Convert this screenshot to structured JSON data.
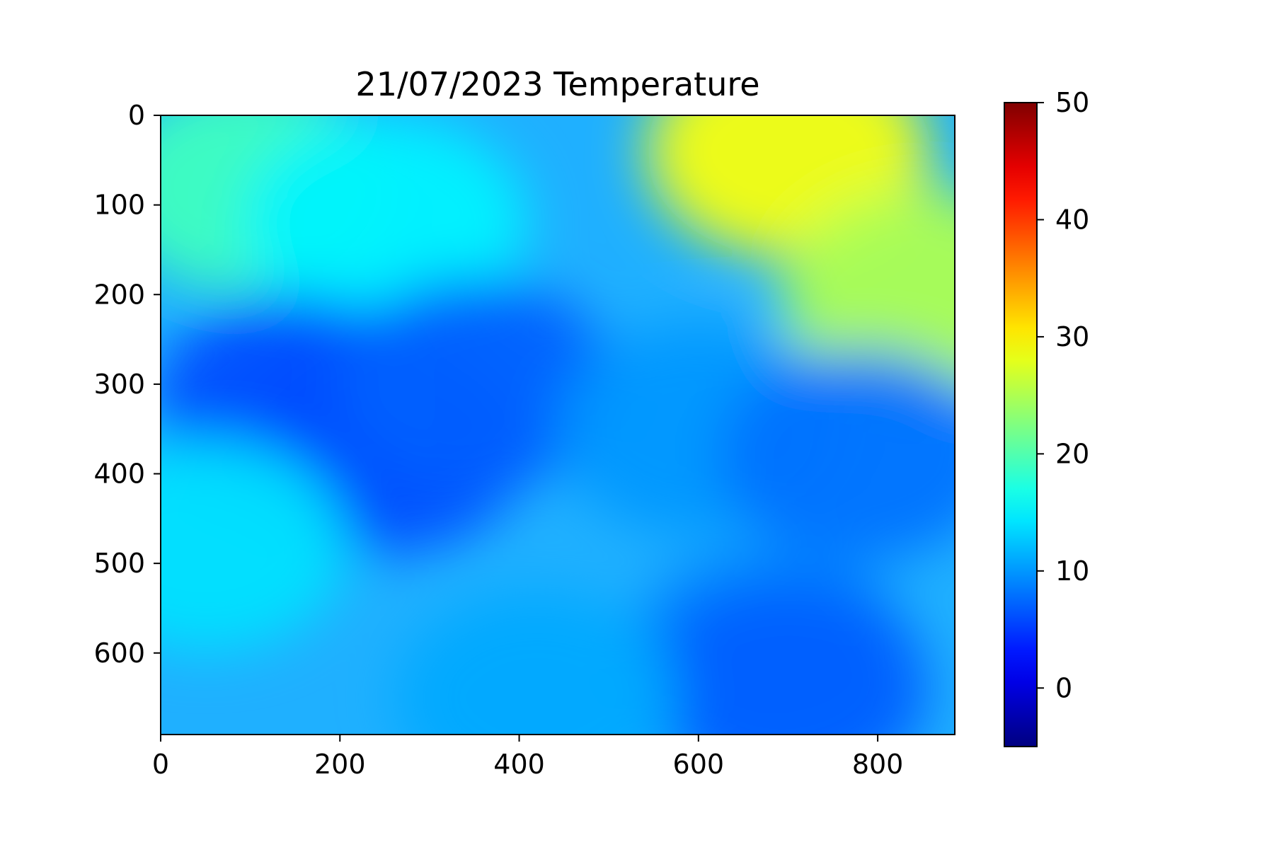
{
  "chart_data": {
    "type": "heatmap",
    "title": "21/07/2023 Temperature",
    "xlabel": "",
    "ylabel": "",
    "xlim": [
      0,
      886
    ],
    "ylim": [
      691,
      0
    ],
    "x_ticks": [
      0,
      200,
      400,
      600,
      800
    ],
    "y_ticks": [
      0,
      100,
      200,
      300,
      400,
      500,
      600
    ],
    "colorbar": {
      "colormap": "jet",
      "range": [
        -5,
        50
      ],
      "ticks": [
        0,
        10,
        20,
        30,
        40,
        50
      ]
    },
    "grid": false,
    "summary_regions": [
      {
        "x": 100,
        "y": 80,
        "value": 19
      },
      {
        "x": 250,
        "y": 120,
        "value": 15
      },
      {
        "x": 700,
        "y": 40,
        "value": 29
      },
      {
        "x": 850,
        "y": 200,
        "value": 25
      },
      {
        "x": 150,
        "y": 320,
        "value": 6
      },
      {
        "x": 250,
        "y": 370,
        "value": 6
      },
      {
        "x": 350,
        "y": 300,
        "value": 7
      },
      {
        "x": 600,
        "y": 350,
        "value": 10
      },
      {
        "x": 780,
        "y": 380,
        "value": 8
      },
      {
        "x": 680,
        "y": 600,
        "value": 9
      },
      {
        "x": 700,
        "y": 640,
        "value": 7
      },
      {
        "x": 50,
        "y": 480,
        "value": 14
      },
      {
        "x": 420,
        "y": 650,
        "value": 11
      }
    ]
  }
}
